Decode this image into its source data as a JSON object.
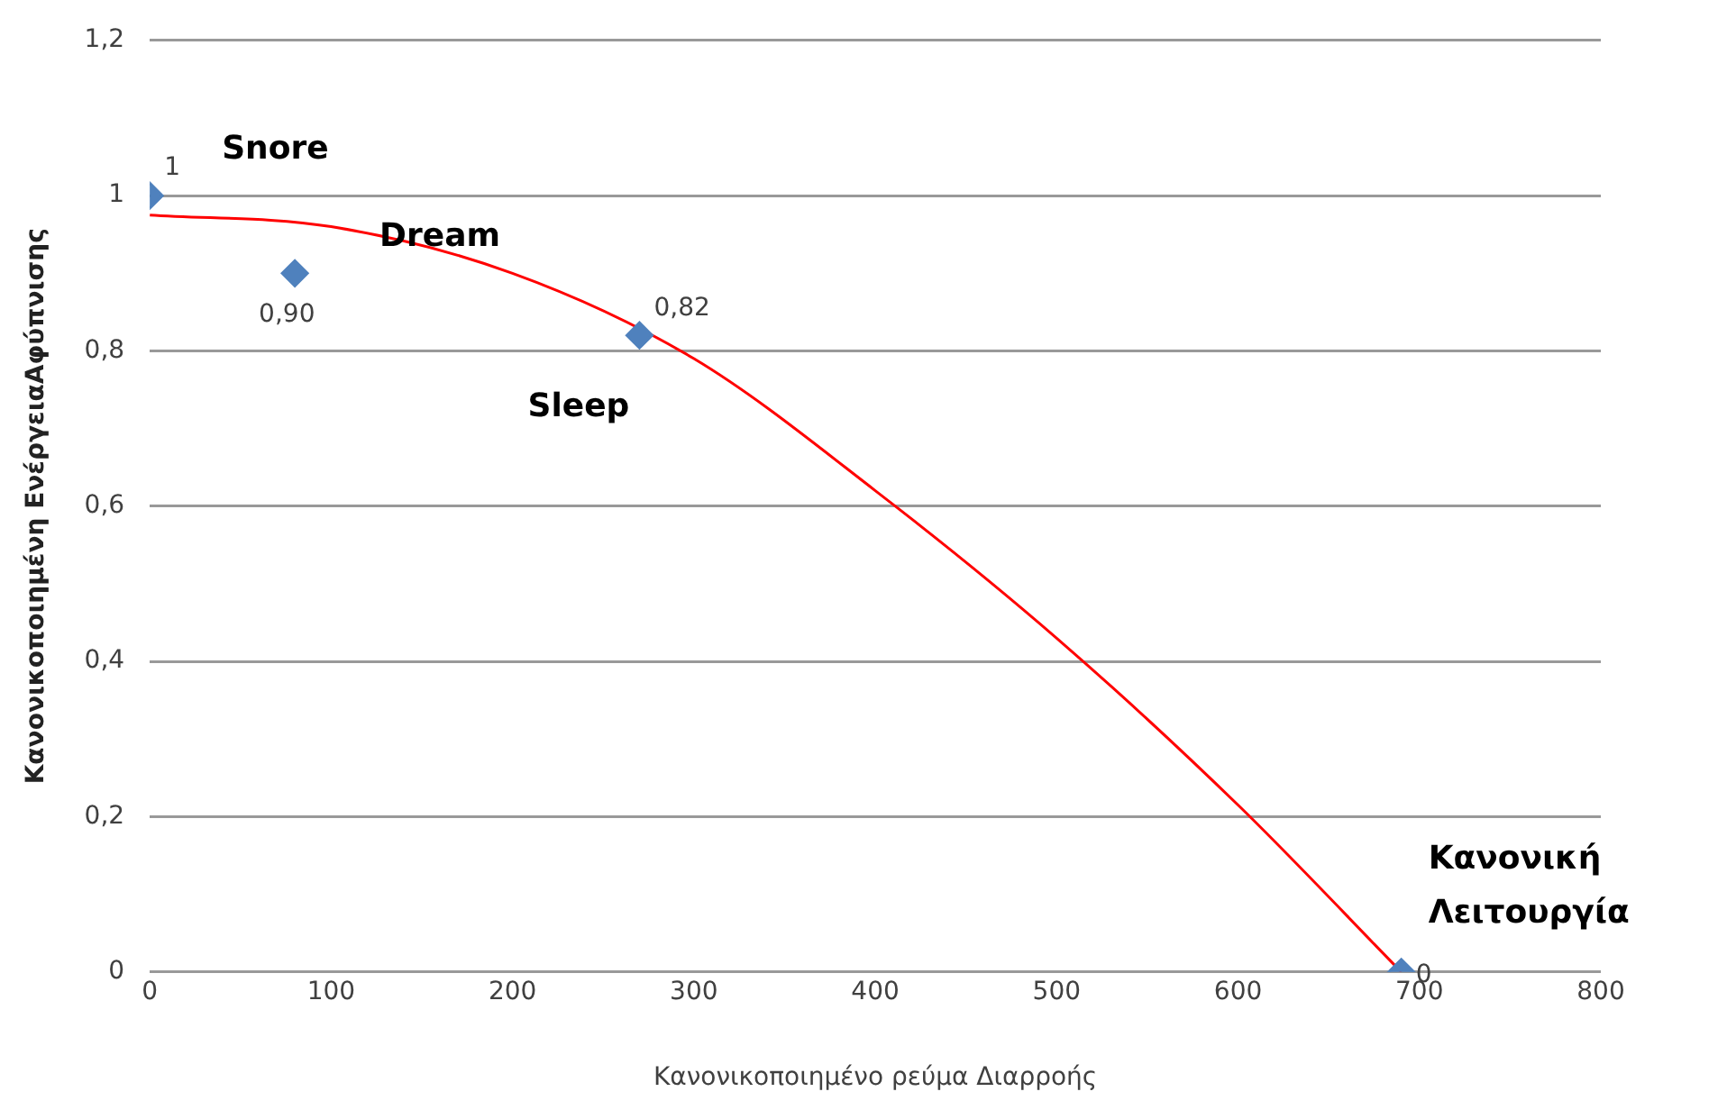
{
  "chart_data": {
    "type": "scatter",
    "xlabel": "Κανονικοποιημένο ρεύμα Διαρροής",
    "ylabel": "Κανονικοποιημένη ΕνέργειαΑφύπνισης",
    "series": [
      {
        "color": "#4f81bd",
        "x": [
          0,
          80,
          270,
          690
        ],
        "values": [
          1,
          0.9,
          0.82,
          0
        ],
        "value_labels": [
          "1",
          "0,90",
          "0,82",
          "0"
        ],
        "marker": "diamond"
      },
      {
        "type": "line",
        "color": "#ff0000",
        "x": [
          0,
          100,
          200,
          300,
          400,
          500,
          600,
          690
        ],
        "values": [
          0.975,
          0.96,
          0.9,
          0.79,
          0.62,
          0.43,
          0.215,
          0
        ],
        "marker": "none"
      }
    ],
    "annotations": [
      "Snore",
      "Dream",
      "Sleep",
      "Κανονική\nΛειτουργία"
    ],
    "xlim": [
      0,
      800
    ],
    "xticks": [
      0,
      100,
      200,
      300,
      400,
      500,
      600,
      700,
      800
    ],
    "ylim": [
      0,
      1.2
    ],
    "yticks": [
      0,
      {
        "value": 0.2,
        "label": "0,2"
      },
      {
        "value": 0.4,
        "label": "0,4"
      },
      {
        "value": 0.6,
        "label": "0,6"
      },
      {
        "value": 0.8,
        "label": "0,8"
      },
      1,
      {
        "value": 1.2,
        "label": "1,2"
      }
    ],
    "grid": "y",
    "legend": false
  }
}
